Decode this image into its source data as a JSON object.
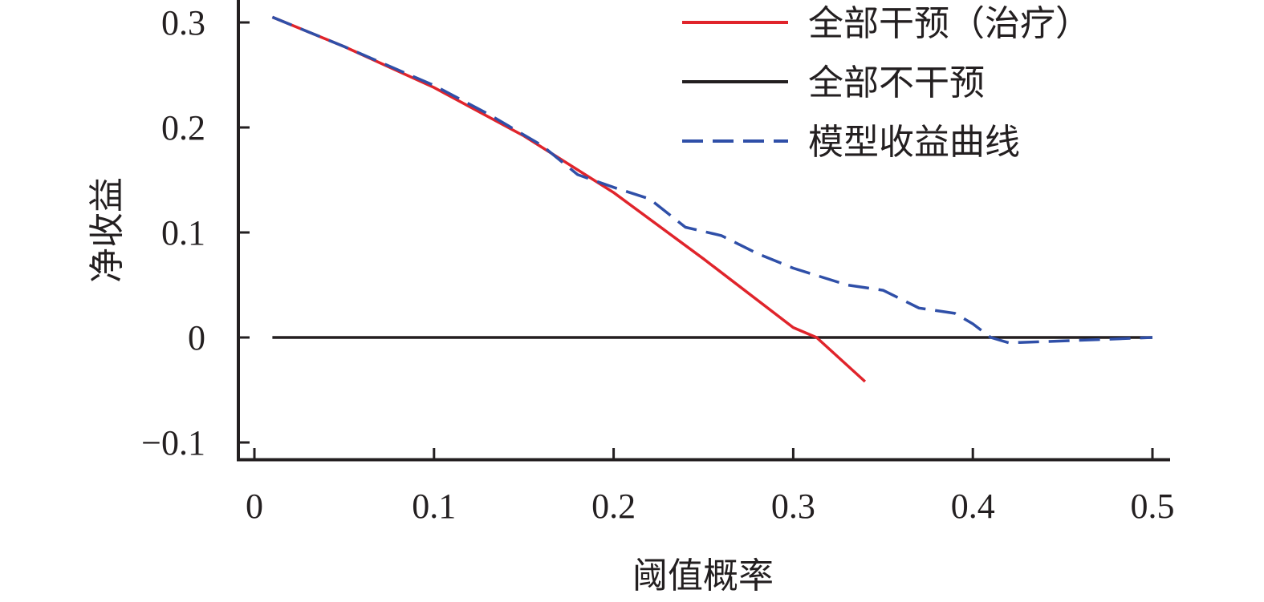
{
  "chart_data": {
    "type": "line",
    "title": "",
    "xlabel": "阈值概率",
    "ylabel": "净收益",
    "xlim": [
      0,
      0.5
    ],
    "ylim": [
      -0.1,
      0.3
    ],
    "xticks": [
      0,
      0.1,
      0.2,
      0.3,
      0.4,
      0.5
    ],
    "xtick_labels": [
      "0",
      "0.1",
      "0.2",
      "0.3",
      "0.4",
      "0.5"
    ],
    "yticks": [
      -0.1,
      0,
      0.1,
      0.2,
      0.3
    ],
    "ytick_labels": [
      "−0.1",
      "0",
      "0.1",
      "0.2",
      "0.3"
    ],
    "grid": false,
    "legend_position": "top-right",
    "series": [
      {
        "name": "全部干预（治疗）",
        "color": "#e0242b",
        "style": "solid",
        "x": [
          0.01,
          0.05,
          0.1,
          0.15,
          0.2,
          0.25,
          0.3,
          0.313,
          0.34
        ],
        "y": [
          0.305,
          0.277,
          0.238,
          0.192,
          0.138,
          0.075,
          0.0095,
          0.0,
          -0.042
        ]
      },
      {
        "name": "全部不干预",
        "color": "#231f20",
        "style": "solid",
        "x": [
          0.01,
          0.5
        ],
        "y": [
          0.0,
          0.0
        ]
      },
      {
        "name": "模型收益曲线",
        "color": "#2f4fa8",
        "style": "dashed",
        "x": [
          0.01,
          0.05,
          0.1,
          0.13,
          0.16,
          0.18,
          0.2,
          0.22,
          0.24,
          0.26,
          0.28,
          0.3,
          0.33,
          0.35,
          0.37,
          0.39,
          0.4,
          0.41,
          0.42,
          0.44,
          0.47,
          0.5
        ],
        "y": [
          0.305,
          0.277,
          0.24,
          0.213,
          0.183,
          0.155,
          0.143,
          0.132,
          0.105,
          0.097,
          0.08,
          0.066,
          0.05,
          0.045,
          0.028,
          0.023,
          0.013,
          0.0,
          -0.005,
          -0.004,
          -0.002,
          0.0
        ]
      }
    ]
  }
}
